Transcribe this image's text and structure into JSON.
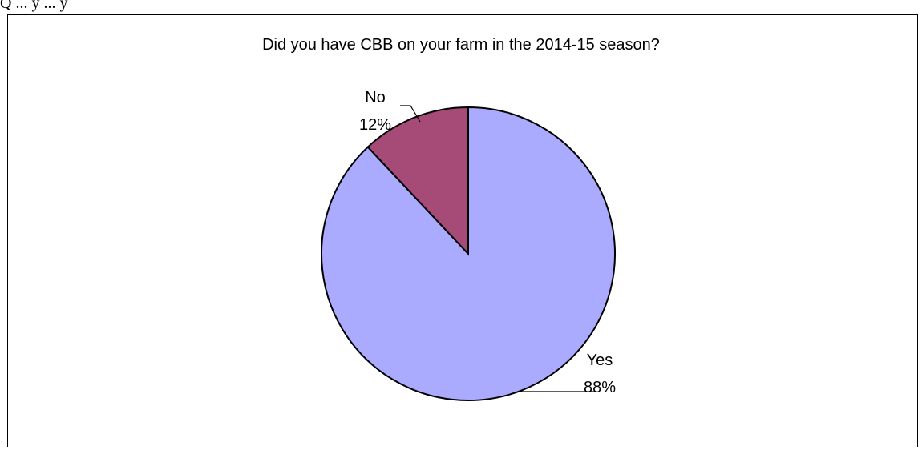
{
  "header_fragment": "Q ... y ... y",
  "chart_data": {
    "type": "pie",
    "title": "Did you have CBB on your farm in the 2014-15 season?",
    "categories": [
      "Yes",
      "No"
    ],
    "values": [
      88,
      12
    ],
    "value_labels": [
      "88%",
      "12%"
    ],
    "colors": [
      "#aaaaff",
      "#a64a78"
    ],
    "start_angle_deg": 0,
    "direction": "clockwise",
    "legend": "none",
    "data_labels": "outside-with-leaders"
  }
}
